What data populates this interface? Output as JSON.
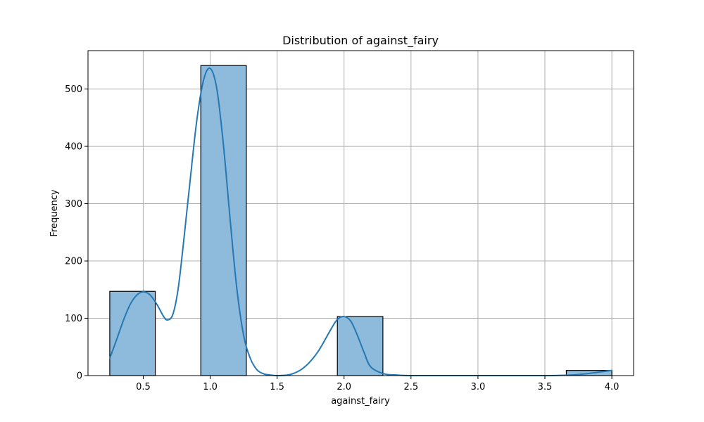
{
  "chart_data": {
    "type": "bar",
    "title": "Distribution of against_fairy",
    "xlabel": "against_fairy",
    "ylabel": "Frequency",
    "xlim": [
      0.0875,
      4.1625
    ],
    "ylim": [
      0,
      567
    ],
    "xticks": [
      0.5,
      1.0,
      1.5,
      2.0,
      2.5,
      3.0,
      3.5,
      4.0
    ],
    "xtick_labels": [
      "0.5",
      "1.0",
      "1.5",
      "2.0",
      "2.5",
      "3.0",
      "3.5",
      "4.0"
    ],
    "yticks": [
      0,
      100,
      200,
      300,
      400,
      500
    ],
    "ytick_labels": [
      "0",
      "100",
      "200",
      "300",
      "400",
      "500"
    ],
    "grid": true,
    "bins": [
      {
        "x0": 0.25,
        "x1": 0.59,
        "value": 147
      },
      {
        "x0": 0.93,
        "x1": 1.27,
        "value": 541
      },
      {
        "x0": 1.95,
        "x1": 2.29,
        "value": 103
      },
      {
        "x0": 3.66,
        "x1": 4.0,
        "value": 9
      }
    ],
    "kde": {
      "x": [
        0.25,
        0.3,
        0.35,
        0.4,
        0.45,
        0.5,
        0.55,
        0.6,
        0.65,
        0.68,
        0.72,
        0.76,
        0.8,
        0.85,
        0.9,
        0.95,
        1.0,
        1.05,
        1.1,
        1.15,
        1.2,
        1.25,
        1.3,
        1.35,
        1.4,
        1.45,
        1.5,
        1.6,
        1.7,
        1.8,
        1.9,
        1.95,
        2.0,
        2.05,
        2.1,
        2.15,
        2.2,
        2.3,
        2.4,
        2.5,
        3.0,
        3.5,
        3.7,
        3.8,
        3.9,
        4.0
      ],
      "y": [
        30,
        62,
        95,
        123,
        140,
        146,
        141,
        125,
        104,
        97,
        106,
        150,
        230,
        340,
        445,
        515,
        536,
        500,
        400,
        270,
        150,
        70,
        30,
        10,
        3,
        1,
        0,
        2,
        14,
        40,
        80,
        98,
        103,
        95,
        70,
        40,
        15,
        3,
        1,
        0,
        0,
        0,
        1,
        3,
        6,
        9
      ]
    },
    "colors": {
      "bar_fill": "#8ebadb",
      "bar_edge": "#000000",
      "kde_line": "#2478b4"
    }
  }
}
